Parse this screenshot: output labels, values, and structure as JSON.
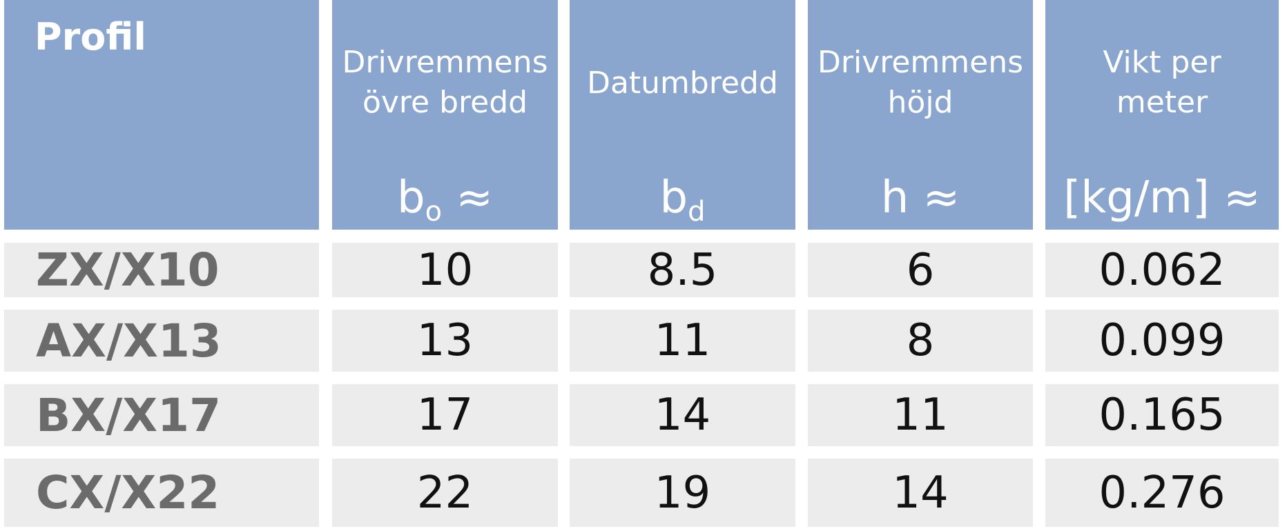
{
  "header": {
    "columns": [
      {
        "title": "Profil"
      },
      {
        "title": [
          "Drivremmens",
          "övre bredd"
        ],
        "symbol": "b",
        "subscript": "o",
        "suffix": "≈"
      },
      {
        "title": [
          "Datumbredd"
        ],
        "symbol": "b",
        "subscript": "d"
      },
      {
        "title": [
          "Drivremmens",
          "höjd"
        ],
        "symbol": "h",
        "suffix": "≈"
      },
      {
        "title": [
          "Vikt per",
          "meter"
        ],
        "symbol": "[kg/m]",
        "suffix": "≈"
      }
    ]
  },
  "table": {
    "rows": [
      [
        "ZX/X10",
        10,
        8.5,
        6,
        0.062
      ],
      [
        "AX/X13",
        13,
        11,
        8,
        0.099
      ],
      [
        "BX/X17",
        17,
        14,
        11,
        0.165
      ],
      [
        "CX/X22",
        22,
        19,
        14,
        0.276
      ]
    ]
  }
}
